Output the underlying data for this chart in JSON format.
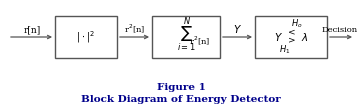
{
  "title_line1": "Figure 1",
  "title_line2": "Block Diagram of Energy Detector",
  "title_color": "#00008B",
  "background_color": "#ffffff",
  "text_color": "#000000",
  "box_edge_color": "#555555",
  "arrow_color": "#555555",
  "figwidth": 3.63,
  "figheight": 1.07,
  "dpi": 100
}
